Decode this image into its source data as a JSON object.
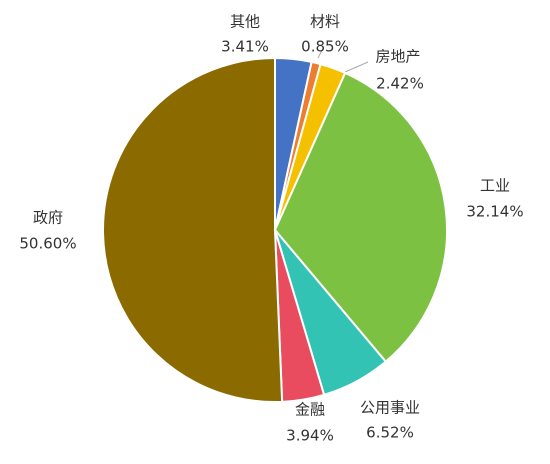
{
  "chart_data": {
    "type": "pie",
    "categories": [
      "其他",
      "材料",
      "房地产",
      "工业",
      "公用事业",
      "金融",
      "政府"
    ],
    "values": [
      3.41,
      0.85,
      2.42,
      32.14,
      6.52,
      3.94,
      50.6
    ],
    "value_labels": [
      "3.41%",
      "0.85%",
      "2.42%",
      "32.14%",
      "6.52%",
      "3.94%",
      "50.60%"
    ],
    "colors": [
      "#4472c4",
      "#ed7d31",
      "#f5c000",
      "#7cc142",
      "#33c3b5",
      "#e84c5e",
      "#8b6b00"
    ]
  }
}
